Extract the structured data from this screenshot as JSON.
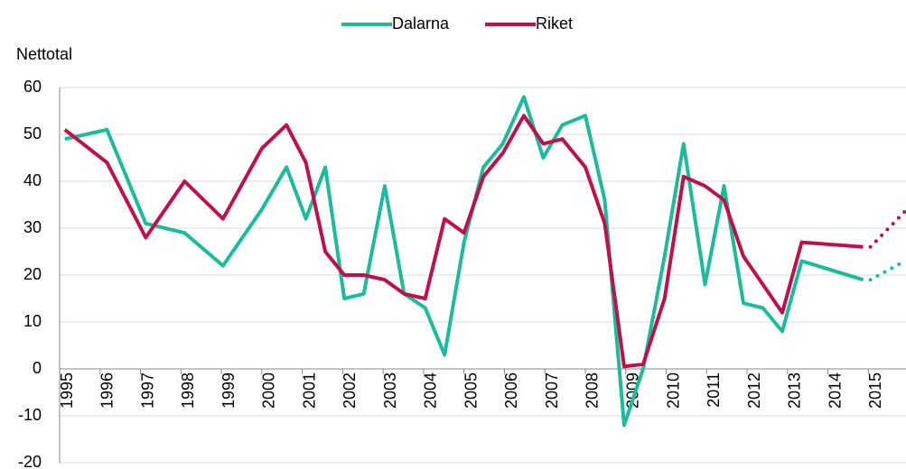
{
  "chart_data": {
    "type": "line",
    "y_label": "Nettotal",
    "x": [
      1995.13,
      1996.17,
      1997.13,
      1998.09,
      1999.04,
      2000.0,
      2000.61,
      2001.09,
      2001.57,
      2002.04,
      2002.52,
      2003.04,
      2003.52,
      2004.04,
      2004.52,
      2005.0,
      2005.48,
      2005.96,
      2006.48,
      2006.96,
      2007.43,
      2008.0,
      2008.48,
      2008.96,
      2009.43,
      2009.96,
      2010.43,
      2010.96,
      2011.43,
      2011.91,
      2012.39,
      2012.87,
      2013.35,
      2014.87
    ],
    "series": [
      {
        "name": "Dalarna",
        "color": "#1abc9c",
        "values": [
          49,
          51,
          31,
          29,
          22,
          34,
          43,
          32,
          43,
          15,
          16,
          39,
          16,
          13,
          3,
          27,
          43,
          48,
          58,
          45,
          52,
          54,
          36,
          -12,
          0,
          24,
          48,
          18,
          39,
          14,
          13,
          8,
          23,
          19
        ]
      },
      {
        "name": "Riket",
        "color": "#c0104a",
        "values": [
          51,
          44,
          28,
          40,
          32,
          47,
          52,
          44,
          25,
          20,
          20,
          19,
          16,
          15,
          32,
          29,
          41,
          46,
          54,
          48,
          49,
          43,
          31,
          0.5,
          1,
          15,
          41,
          39,
          36,
          24,
          18,
          12,
          27,
          26
        ]
      }
    ],
    "forecast": [
      {
        "color": "#1abc9c",
        "x": [
          2015.05,
          2015.9
        ],
        "values": [
          19,
          23
        ],
        "dotted": true
      },
      {
        "color": "#c0104a",
        "x": [
          2015.05,
          2015.95
        ],
        "values": [
          26,
          34
        ],
        "dotted": true
      }
    ],
    "xlim": [
      1995,
      2015.93
    ],
    "xticks": [
      1995,
      1996,
      1997,
      1998,
      1999,
      2000,
      2001,
      2002,
      2003,
      2004,
      2005,
      2006,
      2007,
      2008,
      2009,
      2010,
      2011,
      2012,
      2013,
      2014,
      2015
    ],
    "ylim": [
      -20,
      60
    ],
    "yticks": [
      -20,
      -10,
      0,
      10,
      20,
      30,
      40,
      50,
      60
    ],
    "grid": true,
    "legend": "top"
  }
}
